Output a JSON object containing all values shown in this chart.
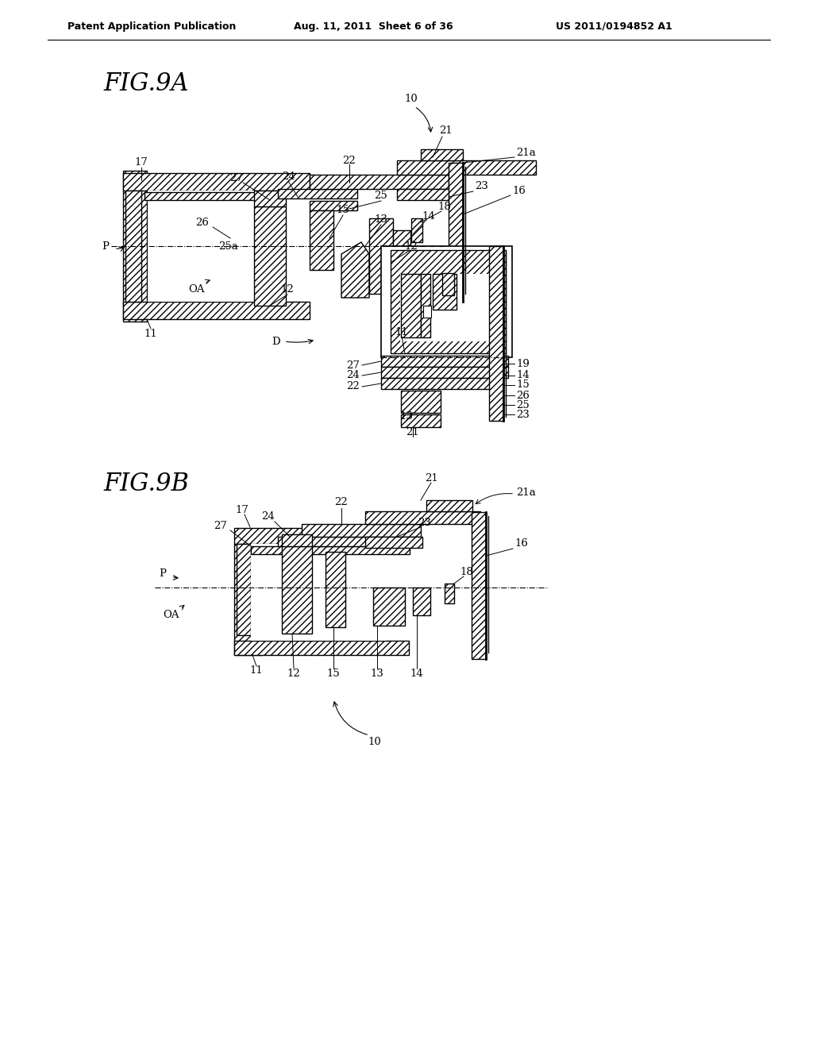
{
  "bg_color": "#ffffff",
  "header_text": "Patent Application Publication",
  "header_date": "Aug. 11, 2011  Sheet 6 of 36",
  "header_patent": "US 2011/0194852 A1",
  "fig9a_label": "FIG.9A",
  "fig9b_label": "FIG.9B",
  "line_color": "#000000",
  "text_color": "#000000"
}
